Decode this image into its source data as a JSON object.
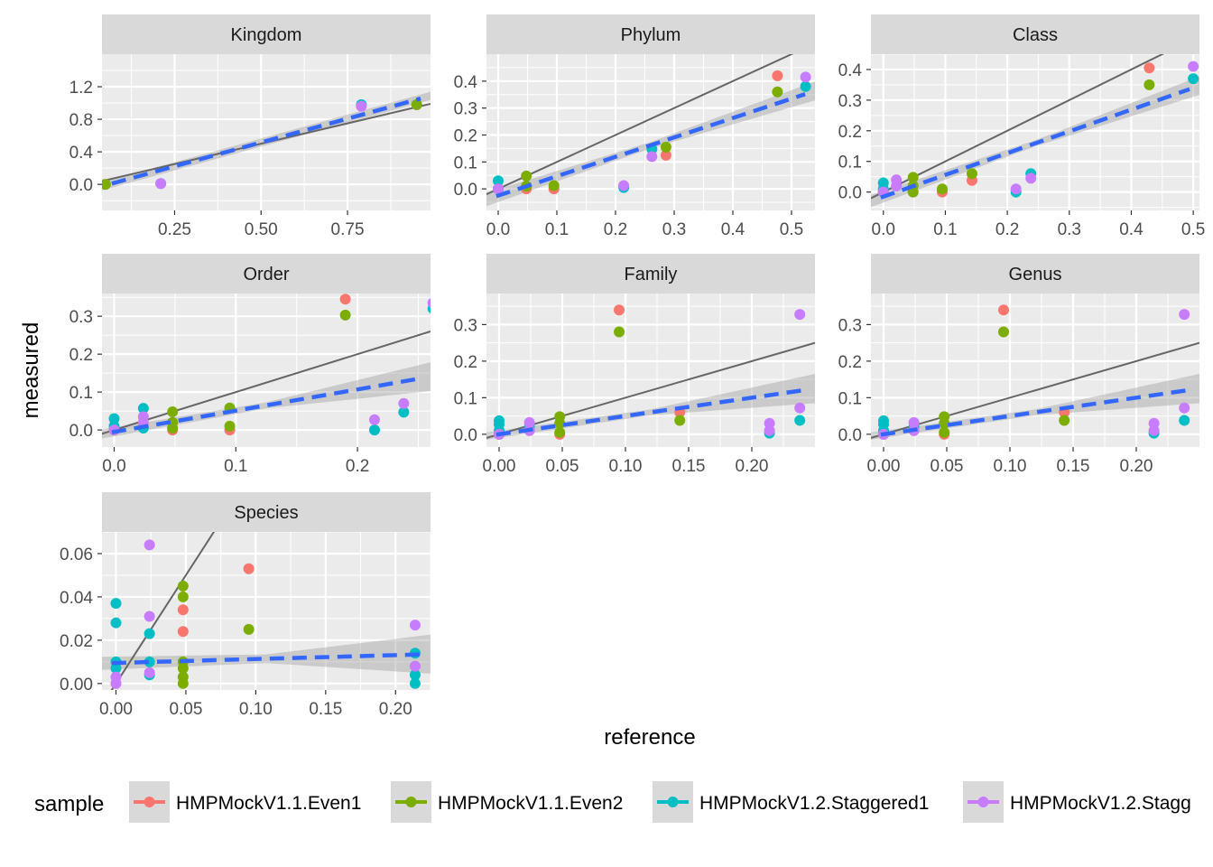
{
  "chart_data": {
    "type": "scatter",
    "xlabel": "reference",
    "ylabel": "measured",
    "legend": {
      "title": "sample",
      "placement": "bottom",
      "entries": [
        {
          "name": "HMPMockV1.1.Even1",
          "color": "#F8766D"
        },
        {
          "name": "HMPMockV1.1.Even2",
          "color": "#7CAE00"
        },
        {
          "name": "HMPMockV1.2.Staggered1",
          "color": "#00BFC4"
        },
        {
          "name": "HMPMockV1.2.Stagg",
          "color": "#C77CFF"
        }
      ]
    },
    "overlays": {
      "identity_line": "y = x",
      "identity_color": "#666666",
      "fit_line": "linear fit (dashed) with confidence band",
      "fit_color": "#3366FF",
      "band_color": "#999999"
    },
    "panel_background": "#EBEBEB",
    "strip_background": "#D9D9D9",
    "grid": true,
    "panels": [
      {
        "title": "Kingdom",
        "xlim": [
          0.04,
          0.99
        ],
        "ylim": [
          -0.32,
          1.6
        ],
        "xticks": [
          0.25,
          0.5,
          0.75
        ],
        "xtick_labels": [
          "0.25",
          "0.50",
          "0.75"
        ],
        "yticks": [
          0,
          0.4,
          0.8,
          1.2
        ],
        "ytick_labels": [
          "0.0",
          "0.4",
          "0.8",
          "1.2"
        ],
        "fit": [
          -0.07,
          1.17
        ],
        "band": [
          0.05,
          0.05,
          0.05
        ],
        "series": [
          {
            "name": "HMPMockV1.1.Even1",
            "x": [
              0.05,
              0.95
            ],
            "y": [
              0.0,
              0.98
            ]
          },
          {
            "name": "HMPMockV1.1.Even2",
            "x": [
              0.05,
              0.95
            ],
            "y": [
              0.0,
              0.98
            ]
          },
          {
            "name": "HMPMockV1.2.Staggered1",
            "x": [
              0.21,
              0.79
            ],
            "y": [
              0.01,
              0.98
            ]
          },
          {
            "name": "HMPMockV1.2.Stagg",
            "x": [
              0.21,
              0.79
            ],
            "y": [
              0.01,
              0.96
            ]
          }
        ]
      },
      {
        "title": "Phylum",
        "xlim": [
          -0.02,
          0.54
        ],
        "ylim": [
          -0.08,
          0.5
        ],
        "xticks": [
          0,
          0.1,
          0.2,
          0.3,
          0.4,
          0.5
        ],
        "xtick_labels": [
          "0.0",
          "0.1",
          "0.2",
          "0.3",
          "0.4",
          "0.5"
        ],
        "yticks": [
          0,
          0.1,
          0.2,
          0.3,
          0.4
        ],
        "ytick_labels": [
          "0.0",
          "0.1",
          "0.2",
          "0.3",
          "0.4"
        ],
        "fit": [
          -0.025,
          0.72
        ],
        "band": [
          0.025,
          0.012,
          0.035
        ],
        "series": [
          {
            "name": "HMPMockV1.1.Even1",
            "x": [
              0.0,
              0.048,
              0.095,
              0.286,
              0.476
            ],
            "y": [
              0.0,
              0.0,
              0.0,
              0.125,
              0.42
            ]
          },
          {
            "name": "HMPMockV1.1.Even2",
            "x": [
              0.0,
              0.048,
              0.048,
              0.095,
              0.286,
              0.476
            ],
            "y": [
              0.0,
              0.048,
              0.01,
              0.012,
              0.155,
              0.36
            ]
          },
          {
            "name": "HMPMockV1.2.Staggered1",
            "x": [
              0.0,
              0.0,
              0.214,
              0.262,
              0.524
            ],
            "y": [
              0.03,
              0.0,
              0.005,
              0.148,
              0.38
            ]
          },
          {
            "name": "HMPMockV1.2.Stagg",
            "x": [
              0.0,
              0.214,
              0.262,
              0.524
            ],
            "y": [
              0.0,
              0.012,
              0.12,
              0.415
            ]
          }
        ]
      },
      {
        "title": "Class",
        "xlim": [
          -0.02,
          0.51
        ],
        "ylim": [
          -0.06,
          0.45
        ],
        "xticks": [
          0,
          0.1,
          0.2,
          0.3,
          0.4,
          0.5
        ],
        "xtick_labels": [
          "0.0",
          "0.1",
          "0.2",
          "0.3",
          "0.4",
          "0.5"
        ],
        "yticks": [
          0,
          0.1,
          0.2,
          0.3,
          0.4
        ],
        "ytick_labels": [
          "0.0",
          "0.1",
          "0.2",
          "0.3",
          "0.4"
        ],
        "fit": [
          -0.015,
          0.71
        ],
        "band": [
          0.02,
          0.01,
          0.03
        ],
        "series": [
          {
            "name": "HMPMockV1.1.Even1",
            "x": [
              0.0,
              0.048,
              0.095,
              0.143,
              0.429
            ],
            "y": [
              0.0,
              0.0,
              0.0,
              0.038,
              0.405
            ]
          },
          {
            "name": "HMPMockV1.1.Even2",
            "x": [
              0.0,
              0.048,
              0.048,
              0.048,
              0.095,
              0.143,
              0.429
            ],
            "y": [
              0.0,
              0.048,
              0.02,
              0.0,
              0.01,
              0.06,
              0.35
            ]
          },
          {
            "name": "HMPMockV1.2.Staggered1",
            "x": [
              0.0,
              0.0,
              0.214,
              0.238,
              0.5
            ],
            "y": [
              0.03,
              0.01,
              0.0,
              0.06,
              0.37
            ]
          },
          {
            "name": "HMPMockV1.2.Stagg",
            "x": [
              0.0,
              0.021,
              0.021,
              0.214,
              0.238,
              0.5
            ],
            "y": [
              0.0,
              0.04,
              0.02,
              0.01,
              0.045,
              0.41
            ]
          }
        ]
      },
      {
        "title": "Order",
        "xlim": [
          -0.01,
          0.26
        ],
        "ylim": [
          -0.045,
          0.36
        ],
        "xticks": [
          0,
          0.1,
          0.2
        ],
        "xtick_labels": [
          "0.0",
          "0.1",
          "0.2"
        ],
        "yticks": [
          0,
          0.1,
          0.2,
          0.3
        ],
        "ytick_labels": [
          "0.0",
          "0.1",
          "0.2",
          "0.3"
        ],
        "fit": [
          -0.005,
          0.56
        ],
        "band": [
          0.012,
          0.008,
          0.038
        ],
        "series": [
          {
            "name": "HMPMockV1.1.Even1",
            "x": [
              0.0,
              0.024,
              0.048,
              0.095,
              0.19
            ],
            "y": [
              0.0,
              0.01,
              0.0,
              0.0,
              0.345
            ]
          },
          {
            "name": "HMPMockV1.1.Even2",
            "x": [
              0.0,
              0.048,
              0.048,
              0.048,
              0.095,
              0.095,
              0.19
            ],
            "y": [
              0.0,
              0.048,
              0.02,
              0.005,
              0.058,
              0.01,
              0.303
            ]
          },
          {
            "name": "HMPMockV1.2.Staggered1",
            "x": [
              0.0,
              0.0,
              0.024,
              0.024,
              0.214,
              0.238,
              0.262
            ],
            "y": [
              0.03,
              0.01,
              0.057,
              0.005,
              0.0,
              0.047,
              0.32
            ]
          },
          {
            "name": "HMPMockV1.2.Stagg",
            "x": [
              0.0,
              0.024,
              0.024,
              0.214,
              0.238,
              0.262
            ],
            "y": [
              0.0,
              0.035,
              0.02,
              0.027,
              0.07,
              0.335
            ]
          }
        ]
      },
      {
        "title": "Family",
        "xlim": [
          -0.01,
          0.25
        ],
        "ylim": [
          -0.035,
          0.385
        ],
        "xticks": [
          0,
          0.05,
          0.1,
          0.15,
          0.2
        ],
        "xtick_labels": [
          "0.00",
          "0.05",
          "0.10",
          "0.15",
          "0.20"
        ],
        "yticks": [
          0,
          0.1,
          0.2,
          0.3
        ],
        "ytick_labels": [
          "0.0",
          "0.1",
          "0.2",
          "0.3"
        ],
        "fit": [
          0.0,
          0.5
        ],
        "band": [
          0.01,
          0.008,
          0.04
        ],
        "series": [
          {
            "name": "HMPMockV1.1.Even1",
            "x": [
              0.0,
              0.024,
              0.048,
              0.095,
              0.143
            ],
            "y": [
              0.0,
              0.01,
              0.0,
              0.34,
              0.06
            ]
          },
          {
            "name": "HMPMockV1.1.Even2",
            "x": [
              0.0,
              0.048,
              0.048,
              0.048,
              0.095,
              0.143
            ],
            "y": [
              0.0,
              0.048,
              0.03,
              0.005,
              0.28,
              0.038
            ]
          },
          {
            "name": "HMPMockV1.2.Staggered1",
            "x": [
              0.0,
              0.0,
              0.0,
              0.024,
              0.214,
              0.238
            ],
            "y": [
              0.037,
              0.027,
              0.01,
              0.02,
              0.003,
              0.038
            ]
          },
          {
            "name": "HMPMockV1.2.Stagg",
            "x": [
              0.0,
              0.024,
              0.024,
              0.214,
              0.214,
              0.238,
              0.238
            ],
            "y": [
              0.0,
              0.032,
              0.01,
              0.03,
              0.01,
              0.072,
              0.328
            ]
          }
        ]
      },
      {
        "title": "Genus",
        "xlim": [
          -0.01,
          0.25
        ],
        "ylim": [
          -0.035,
          0.385
        ],
        "xticks": [
          0,
          0.05,
          0.1,
          0.15,
          0.2
        ],
        "xtick_labels": [
          "0.00",
          "0.05",
          "0.10",
          "0.15",
          "0.20"
        ],
        "yticks": [
          0,
          0.1,
          0.2,
          0.3
        ],
        "ytick_labels": [
          "0.0",
          "0.1",
          "0.2",
          "0.3"
        ],
        "fit": [
          0.0,
          0.5
        ],
        "band": [
          0.01,
          0.008,
          0.04
        ],
        "series": [
          {
            "name": "HMPMockV1.1.Even1",
            "x": [
              0.0,
              0.024,
              0.048,
              0.095,
              0.143
            ],
            "y": [
              0.0,
              0.01,
              0.0,
              0.34,
              0.06
            ]
          },
          {
            "name": "HMPMockV1.1.Even2",
            "x": [
              0.0,
              0.048,
              0.048,
              0.048,
              0.095,
              0.143
            ],
            "y": [
              0.0,
              0.048,
              0.03,
              0.005,
              0.28,
              0.038
            ]
          },
          {
            "name": "HMPMockV1.2.Staggered1",
            "x": [
              0.0,
              0.0,
              0.0,
              0.024,
              0.214,
              0.238
            ],
            "y": [
              0.037,
              0.027,
              0.01,
              0.02,
              0.003,
              0.038
            ]
          },
          {
            "name": "HMPMockV1.2.Stagg",
            "x": [
              0.0,
              0.024,
              0.024,
              0.214,
              0.214,
              0.238,
              0.238
            ],
            "y": [
              0.0,
              0.032,
              0.01,
              0.03,
              0.01,
              0.072,
              0.328
            ]
          }
        ]
      },
      {
        "title": "Species",
        "xlim": [
          -0.01,
          0.225
        ],
        "ylim": [
          -0.003,
          0.07
        ],
        "xticks": [
          0,
          0.05,
          0.1,
          0.15,
          0.2
        ],
        "xtick_labels": [
          "0.00",
          "0.05",
          "0.10",
          "0.15",
          "0.20"
        ],
        "yticks": [
          0,
          0.02,
          0.04,
          0.06
        ],
        "ytick_labels": [
          "0.00",
          "0.02",
          "0.04",
          "0.06"
        ],
        "fit": [
          0.0095,
          0.018
        ],
        "band": [
          0.003,
          0.002,
          0.009
        ],
        "series": [
          {
            "name": "HMPMockV1.1.Even1",
            "x": [
              0.0,
              0.048,
              0.048,
              0.095
            ],
            "y": [
              0.0,
              0.034,
              0.024,
              0.053
            ]
          },
          {
            "name": "HMPMockV1.1.Even2",
            "x": [
              0.048,
              0.048,
              0.048,
              0.048,
              0.048,
              0.048,
              0.095
            ],
            "y": [
              0.045,
              0.04,
              0.01,
              0.007,
              0.003,
              0.0,
              0.025
            ]
          },
          {
            "name": "HMPMockV1.2.Staggered1",
            "x": [
              0.0,
              0.0,
              0.0,
              0.0,
              0.024,
              0.024,
              0.024,
              0.214,
              0.214,
              0.214
            ],
            "y": [
              0.037,
              0.028,
              0.01,
              0.007,
              0.023,
              0.01,
              0.004,
              0.014,
              0.004,
              0.0
            ]
          },
          {
            "name": "HMPMockV1.2.Stagg",
            "x": [
              0.0,
              0.0,
              0.024,
              0.024,
              0.024,
              0.214,
              0.214
            ],
            "y": [
              0.003,
              0.0,
              0.064,
              0.031,
              0.005,
              0.027,
              0.008
            ]
          }
        ]
      }
    ]
  }
}
